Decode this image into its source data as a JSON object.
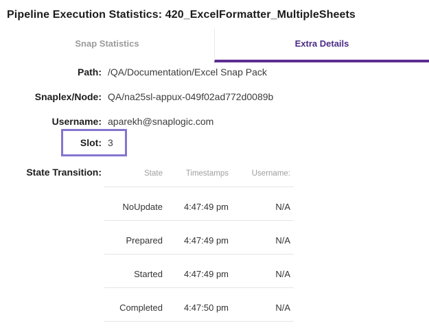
{
  "header": {
    "title": "Pipeline Execution Statistics: 420_ExcelFormatter_MultipleSheets"
  },
  "tabs": [
    {
      "label": "Snap Statistics",
      "active": false
    },
    {
      "label": "Extra Details",
      "active": true
    }
  ],
  "fields": [
    {
      "label": "Path:",
      "value": "/QA/Documentation/Excel Snap Pack"
    },
    {
      "label": "Snaplex/Node:",
      "value": "QA/na25sl-appux-049f02ad772d0089b"
    },
    {
      "label": "Username:",
      "value": "aparekh@snaplogic.com"
    },
    {
      "label": "Slot:",
      "value": "3",
      "highlighted": true
    }
  ],
  "state_transition": {
    "label": "State Transition:",
    "columns": [
      "State",
      "Timestamps",
      "Username:"
    ],
    "rows": [
      {
        "state": "NoUpdate",
        "timestamp": "4:47:49 pm",
        "username": "N/A"
      },
      {
        "state": "Prepared",
        "timestamp": "4:47:49 pm",
        "username": "N/A"
      },
      {
        "state": "Started",
        "timestamp": "4:47:49 pm",
        "username": "N/A"
      },
      {
        "state": "Completed",
        "timestamp": "4:47:50 pm",
        "username": "N/A"
      }
    ]
  },
  "colors": {
    "active_tab_text": "#4b2b87",
    "active_tab_underline": "#5c2d91",
    "inactive_tab_text": "#9b9b9b",
    "slot_highlight_border": "#8474d1",
    "table_header_text": "#9e9e9e",
    "row_separator": "#e4e4e4"
  }
}
